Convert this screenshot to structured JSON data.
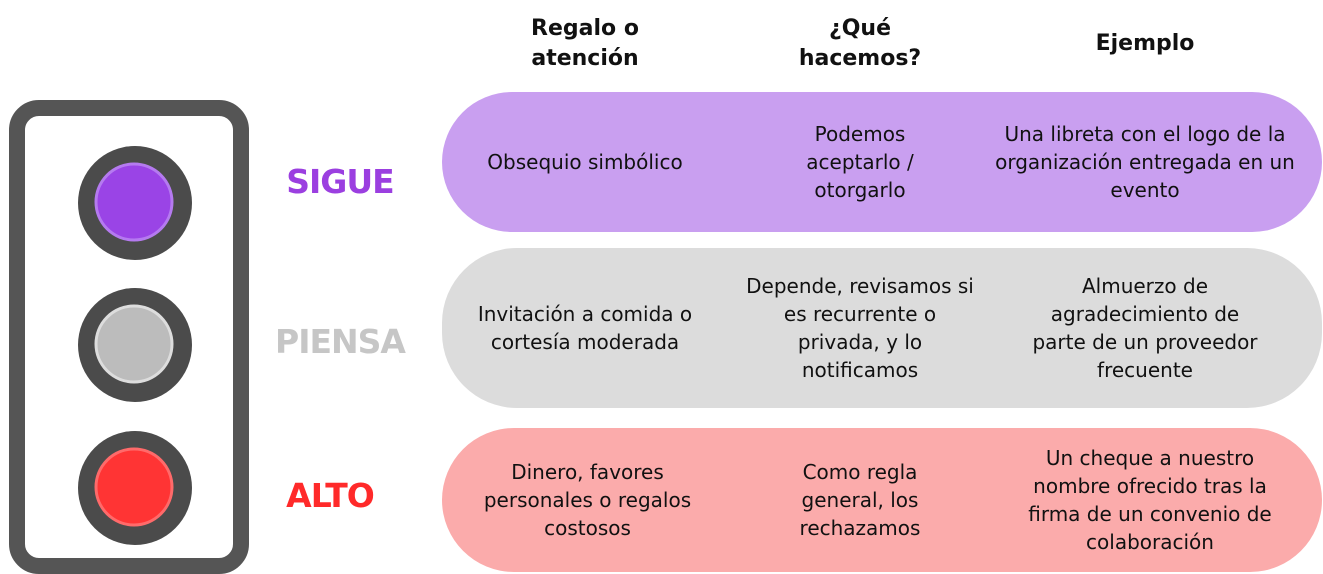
{
  "headers": [
    "Regalo o atención",
    "¿Qué hacemos?",
    "Ejemplo"
  ],
  "rows": [
    {
      "signal": "SIGUE",
      "cells": [
        "Obsequio simbólico",
        "Podemos aceptarlo / otorgarlo",
        "Una libreta con el logo de la organización entregada en un evento"
      ]
    },
    {
      "signal": "PIENSA",
      "cells": [
        "Invitación a comida o cortesía moderada",
        "Depende, revisamos si es recurrente o privada, y lo notificamos",
        "Almuerzo de agradecimiento de parte de un proveedor frecuente"
      ]
    },
    {
      "signal": "ALTO",
      "cells": [
        "Dinero, favores personales o regalos costosos",
        "Como regla general, los rechazamos",
        "Un cheque a nuestro nombre ofrecido tras la firma de un convenio de colaboración"
      ]
    }
  ]
}
